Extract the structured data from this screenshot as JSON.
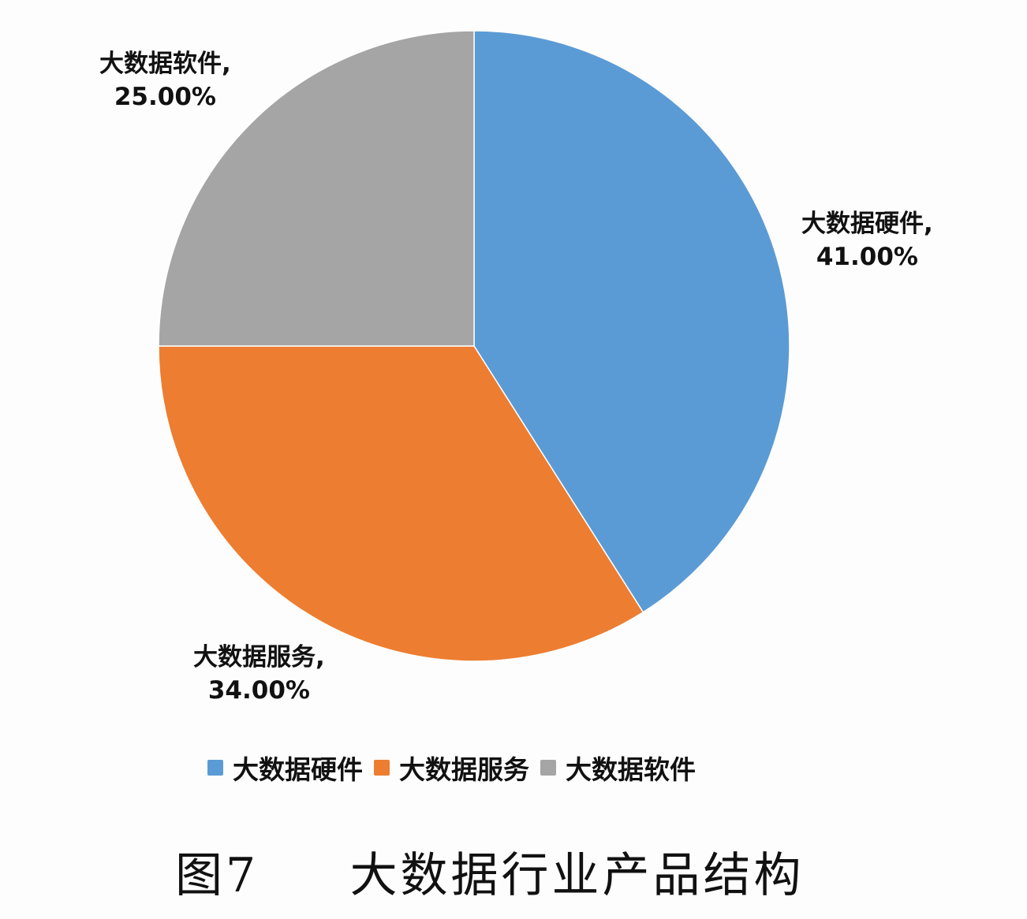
{
  "chart_data": {
    "type": "pie",
    "title": "图7 大数据行业产品结构",
    "categories": [
      "大数据硬件",
      "大数据服务",
      "大数据软件"
    ],
    "values": [
      41.0,
      34.0,
      25.0
    ],
    "unit": "%",
    "colors": [
      "#5b9bd5",
      "#ed7d31",
      "#a5a5a5"
    ],
    "start_angle_deg": 0,
    "direction": "clockwise",
    "legend_position": "bottom",
    "data_labels": [
      {
        "category": "大数据硬件,",
        "value": "41.00%"
      },
      {
        "category": "大数据服务,",
        "value": "34.00%"
      },
      {
        "category": "大数据软件,",
        "value": "25.00%"
      }
    ]
  },
  "legend": {
    "items": [
      {
        "label": "大数据硬件",
        "color": "#5b9bd5"
      },
      {
        "label": "大数据服务",
        "color": "#ed7d31"
      },
      {
        "label": "大数据软件",
        "color": "#a5a5a5"
      }
    ]
  },
  "caption": {
    "figure_number": "图7",
    "text": "大数据行业产品结构"
  }
}
